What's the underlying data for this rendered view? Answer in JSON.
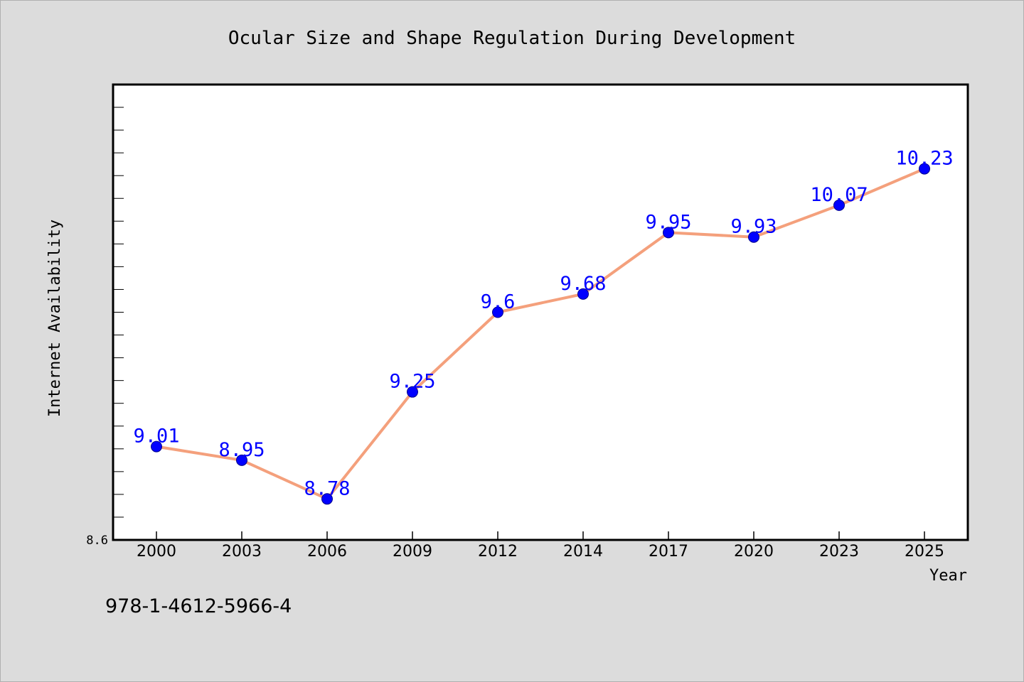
{
  "chart_data": {
    "type": "line",
    "title": "Ocular Size and Shape Regulation During Development",
    "xlabel": "Year",
    "ylabel": "Internet Availability",
    "categories": [
      "2000",
      "2003",
      "2006",
      "2009",
      "2012",
      "2014",
      "2017",
      "2020",
      "2023",
      "2025"
    ],
    "values": [
      9.01,
      8.95,
      8.78,
      9.25,
      9.6,
      9.68,
      9.95,
      9.93,
      10.07,
      10.23
    ],
    "data_labels": [
      "9.01",
      "8.95",
      "8.78",
      "9.25",
      "9.6",
      "9.68",
      "9.95",
      "9.93",
      "10.07",
      "10.23"
    ],
    "ylim": [
      8.6,
      10.6
    ],
    "y_tick_labels": [
      "8.6"
    ],
    "grid": false,
    "legend": "none",
    "line_color": "#f4a07c",
    "marker_color": "#0000ff",
    "label_color": "#0000ff"
  },
  "footer_text": "978-1-4612-5966-4"
}
